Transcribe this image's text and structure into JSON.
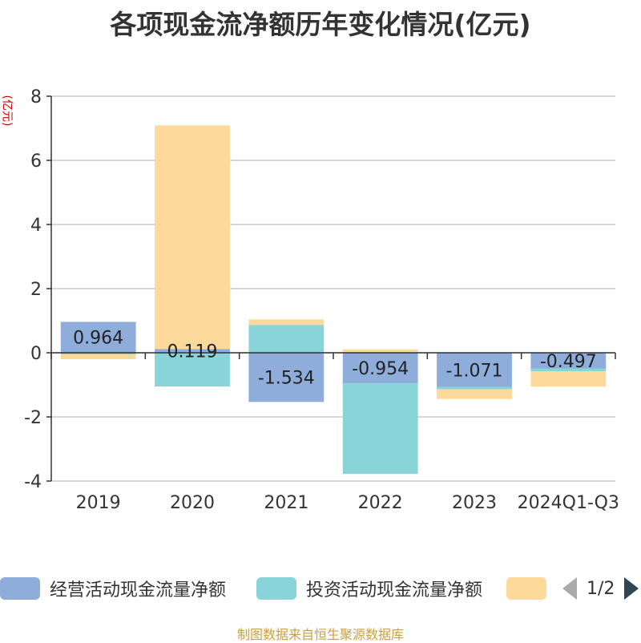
{
  "title": "各项现金流净额历年变化情况(亿元)",
  "unit": "(亿元)",
  "legend": {
    "items": [
      {
        "label": "经营活动现金流量净额",
        "color": "#8eadda"
      },
      {
        "label": "投资活动现金流量净额",
        "color": "#88d4d8"
      },
      {
        "label": "",
        "color": "#fdd99b"
      }
    ],
    "page_indicator": "1/2"
  },
  "source": "制图数据来自恒生聚源数据库",
  "chart_data": {
    "type": "bar",
    "stacked": true,
    "categories": [
      "2019",
      "2020",
      "2021",
      "2022",
      "2023",
      "2024Q1-Q3"
    ],
    "series": [
      {
        "name": "经营活动现金流量净额",
        "values": [
          0.964,
          0.119,
          -1.534,
          -0.954,
          -1.071,
          -0.497
        ],
        "color": "#8eadda"
      },
      {
        "name": "投资活动现金流量净额",
        "values": [
          -0.05,
          -1.05,
          0.87,
          -2.82,
          -0.07,
          -0.08
        ],
        "color": "#88d4d8"
      },
      {
        "values": [
          -0.15,
          6.97,
          0.17,
          0.1,
          -0.3,
          -0.48
        ],
        "color": "#fdd99b"
      }
    ],
    "data_labels": [
      "0.964",
      "0.119",
      "-1.534",
      "-0.954",
      "-1.071",
      "-0.497"
    ],
    "y_ticks": [
      "-4",
      "-2",
      "0",
      "2",
      "4",
      "6",
      "8"
    ],
    "ylim": [
      -4,
      8
    ],
    "grid": true
  }
}
